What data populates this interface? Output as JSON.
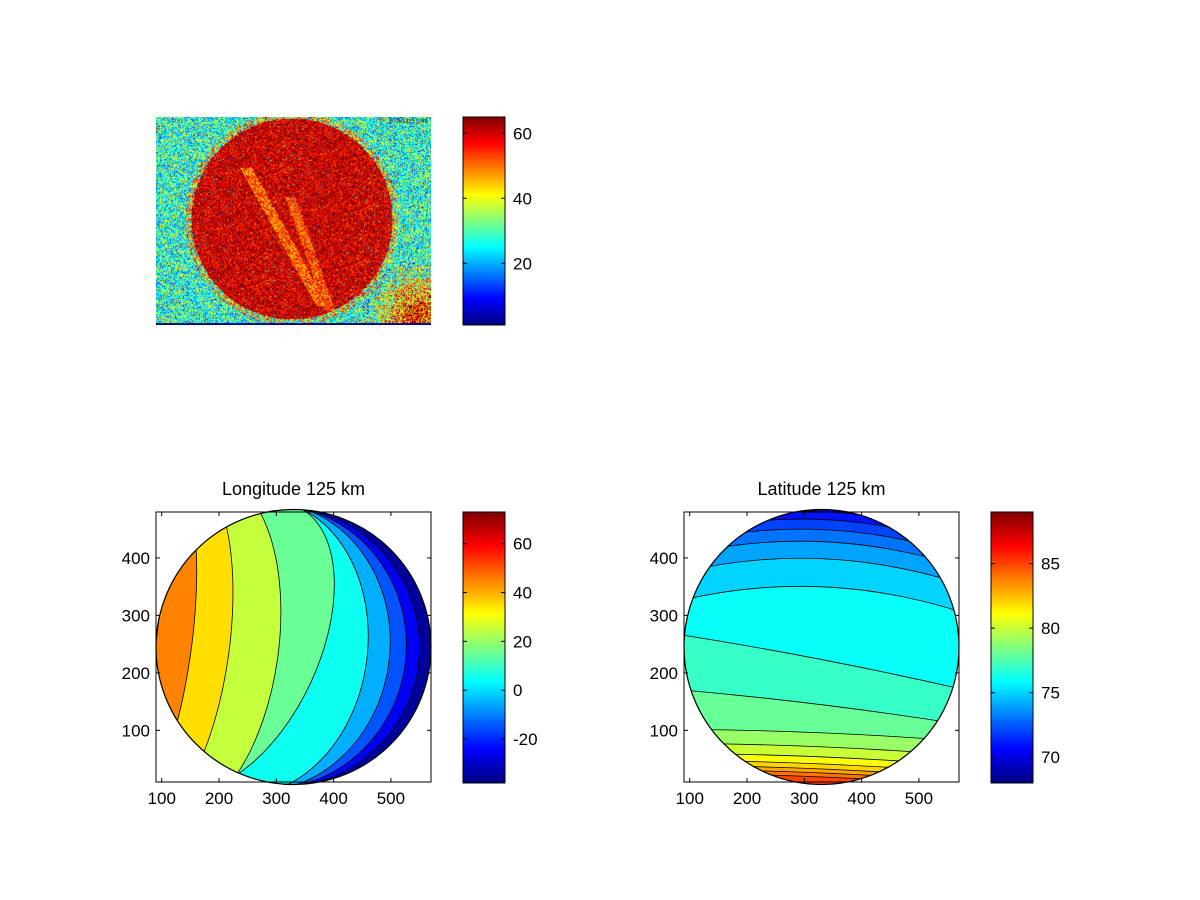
{
  "colors": {
    "background": "#ffffff",
    "axes": "#000000",
    "colormap": "jet"
  },
  "chart_data": [
    {
      "type": "heatmap",
      "id": "image-panel",
      "title": "",
      "xlabel": "",
      "ylabel": "",
      "axes_visible": false,
      "content": "noisy image: red disk on cyan background with red patch lower-right",
      "corner_label": "20081115 3:45",
      "colorbar": {
        "clim": [
          1,
          65
        ],
        "ticks": [
          20,
          40,
          60
        ],
        "tick_labels": [
          "20",
          "40",
          "60"
        ]
      }
    },
    {
      "type": "heatmap",
      "id": "longitude-panel",
      "title": "Longitude 125 km",
      "xlabel": "",
      "ylabel": "",
      "xlim": [
        90,
        570
      ],
      "ylim": [
        10,
        480
      ],
      "xticks": [
        100,
        200,
        300,
        400,
        500
      ],
      "xtick_labels": [
        "100",
        "200",
        "300",
        "400",
        "500"
      ],
      "yticks": [
        100,
        200,
        300,
        400
      ],
      "ytick_labels": [
        "100",
        "200",
        "300",
        "400"
      ],
      "disk": {
        "cx": 330,
        "cy": 245,
        "r": 240
      },
      "contour_levels": [
        75,
        60,
        45,
        35,
        25,
        15,
        5,
        -5,
        -15,
        -25,
        -35
      ],
      "colorbar": {
        "clim": [
          -38,
          73
        ],
        "ticks": [
          -20,
          0,
          20,
          40,
          60
        ],
        "tick_labels": [
          "-20",
          "0",
          "20",
          "40",
          "60"
        ]
      }
    },
    {
      "type": "heatmap",
      "id": "latitude-panel",
      "title": "Latitude 125 km",
      "xlabel": "",
      "ylabel": "",
      "xlim": [
        90,
        570
      ],
      "ylim": [
        10,
        480
      ],
      "xticks": [
        100,
        200,
        300,
        400,
        500
      ],
      "xtick_labels": [
        "100",
        "200",
        "300",
        "400",
        "500"
      ],
      "yticks": [
        100,
        200,
        300,
        400
      ],
      "ytick_labels": [
        "100",
        "200",
        "300",
        "400"
      ],
      "disk": {
        "cx": 330,
        "cy": 245,
        "r": 240
      },
      "contour_levels": [
        66,
        68,
        70,
        71,
        72,
        73,
        74,
        75,
        76,
        77,
        78,
        79,
        80,
        81,
        82,
        83,
        84,
        85
      ],
      "colorbar": {
        "clim": [
          68,
          89
        ],
        "ticks": [
          70,
          75,
          80,
          85
        ],
        "tick_labels": [
          "70",
          "75",
          "80",
          "85"
        ]
      }
    }
  ]
}
